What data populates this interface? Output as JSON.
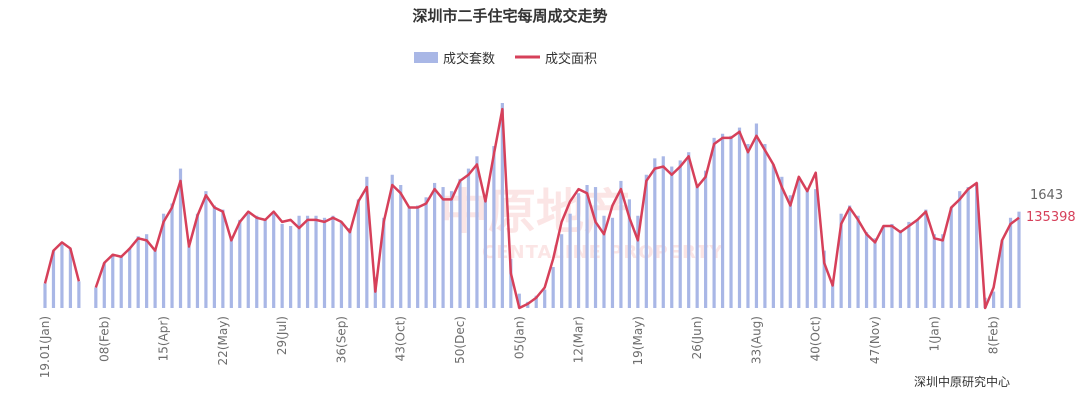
{
  "chart_data": {
    "type": "bar+line",
    "title": "深圳市二手住宅每周成交走势",
    "legend": {
      "placement": "top-center",
      "items": [
        {
          "name": "成交套数",
          "marker": "bar"
        },
        {
          "name": "成交面积",
          "marker": "line"
        }
      ]
    },
    "colors": {
      "bar": "#a9b7e6",
      "line": "#d6405a",
      "last_bar_label": "#666666",
      "last_line_label": "#d6405a"
    },
    "bar_values": [
      0.12,
      0.28,
      0.31,
      0.29,
      0.13,
      null,
      0.1,
      0.22,
      0.26,
      0.25,
      0.29,
      0.35,
      0.36,
      0.29,
      0.46,
      0.51,
      0.68,
      0.3,
      0.46,
      0.57,
      0.5,
      0.48,
      0.34,
      0.43,
      0.46,
      0.45,
      0.43,
      0.46,
      0.41,
      0.4,
      0.45,
      0.45,
      0.45,
      0.44,
      0.45,
      0.42,
      0.39,
      0.53,
      0.64,
      0.15,
      0.44,
      0.65,
      0.6,
      0.49,
      0.5,
      0.54,
      0.61,
      0.59,
      0.57,
      0.63,
      0.68,
      0.74,
      0.54,
      0.79,
      1.0,
      0.24,
      0.07,
      0.03,
      0.06,
      0.09,
      0.2,
      0.36,
      0.46,
      0.56,
      0.6,
      0.59,
      0.45,
      0.44,
      0.62,
      0.53,
      0.45,
      0.65,
      0.73,
      0.74,
      0.69,
      0.72,
      0.76,
      0.6,
      0.67,
      0.83,
      0.85,
      0.84,
      0.88,
      0.8,
      0.9,
      0.8,
      0.7,
      0.64,
      0.55,
      0.63,
      0.58,
      0.58,
      0.28,
      0.13,
      0.46,
      0.5,
      0.45,
      0.37,
      0.34,
      0.4,
      0.41,
      0.38,
      0.42,
      0.43,
      0.48,
      0.36,
      0.36,
      0.49,
      0.57,
      0.59,
      0.61,
      0.05,
      0.08,
      0.33,
      0.44,
      0.47
    ],
    "line_values": [
      0.12,
      0.28,
      0.32,
      0.29,
      0.13,
      null,
      0.1,
      0.22,
      0.26,
      0.25,
      0.29,
      0.34,
      0.33,
      0.28,
      0.42,
      0.49,
      0.62,
      0.3,
      0.45,
      0.55,
      0.49,
      0.47,
      0.33,
      0.42,
      0.47,
      0.44,
      0.43,
      0.47,
      0.42,
      0.43,
      0.39,
      0.43,
      0.43,
      0.42,
      0.44,
      0.42,
      0.37,
      0.52,
      0.59,
      0.08,
      0.42,
      0.6,
      0.56,
      0.49,
      0.49,
      0.51,
      0.58,
      0.53,
      0.53,
      0.62,
      0.65,
      0.7,
      0.52,
      0.75,
      0.97,
      0.17,
      0.0,
      0.02,
      0.05,
      0.1,
      0.24,
      0.42,
      0.52,
      0.58,
      0.56,
      0.42,
      0.36,
      0.5,
      0.58,
      0.44,
      0.33,
      0.62,
      0.68,
      0.69,
      0.65,
      0.69,
      0.74,
      0.59,
      0.64,
      0.8,
      0.83,
      0.83,
      0.86,
      0.76,
      0.84,
      0.77,
      0.7,
      0.59,
      0.5,
      0.64,
      0.57,
      0.66,
      0.22,
      0.11,
      0.41,
      0.49,
      0.43,
      0.36,
      0.32,
      0.4,
      0.4,
      0.37,
      0.4,
      0.43,
      0.47,
      0.34,
      0.33,
      0.49,
      0.53,
      0.58,
      0.61,
      0.0,
      0.1,
      0.33,
      0.41,
      0.44
    ],
    "x_tick_labels": [
      {
        "index": 0,
        "label": "19.01(Jan)"
      },
      {
        "index": 7,
        "label": "08(Feb)"
      },
      {
        "index": 14,
        "label": "15(Apr)"
      },
      {
        "index": 21,
        "label": "22(May)"
      },
      {
        "index": 28,
        "label": "29(Jul)"
      },
      {
        "index": 35,
        "label": "36(Sep)"
      },
      {
        "index": 42,
        "label": "43(Oct)"
      },
      {
        "index": 49,
        "label": "50(Dec)"
      },
      {
        "index": 56,
        "label": "05(Jan)"
      },
      {
        "index": 63,
        "label": "12(Mar)"
      },
      {
        "index": 70,
        "label": "19(May)"
      },
      {
        "index": 77,
        "label": "26(Jun)"
      },
      {
        "index": 84,
        "label": "33(Aug)"
      },
      {
        "index": 91,
        "label": "40(Oct)"
      },
      {
        "index": 98,
        "label": "47(Nov)"
      },
      {
        "index": 105,
        "label": "1(Jan)"
      },
      {
        "index": 112,
        "label": "8(Feb)"
      }
    ],
    "last_values": {
      "bar_label": "1643",
      "line_label": "135398"
    },
    "y_axis": {
      "visible": false,
      "ylim": [
        0,
        1
      ]
    },
    "grid": false
  },
  "watermark": {
    "text_cn": "中原地产",
    "text_en": "CENTALINE PROPERTY"
  },
  "source": "深圳中原研究中心"
}
